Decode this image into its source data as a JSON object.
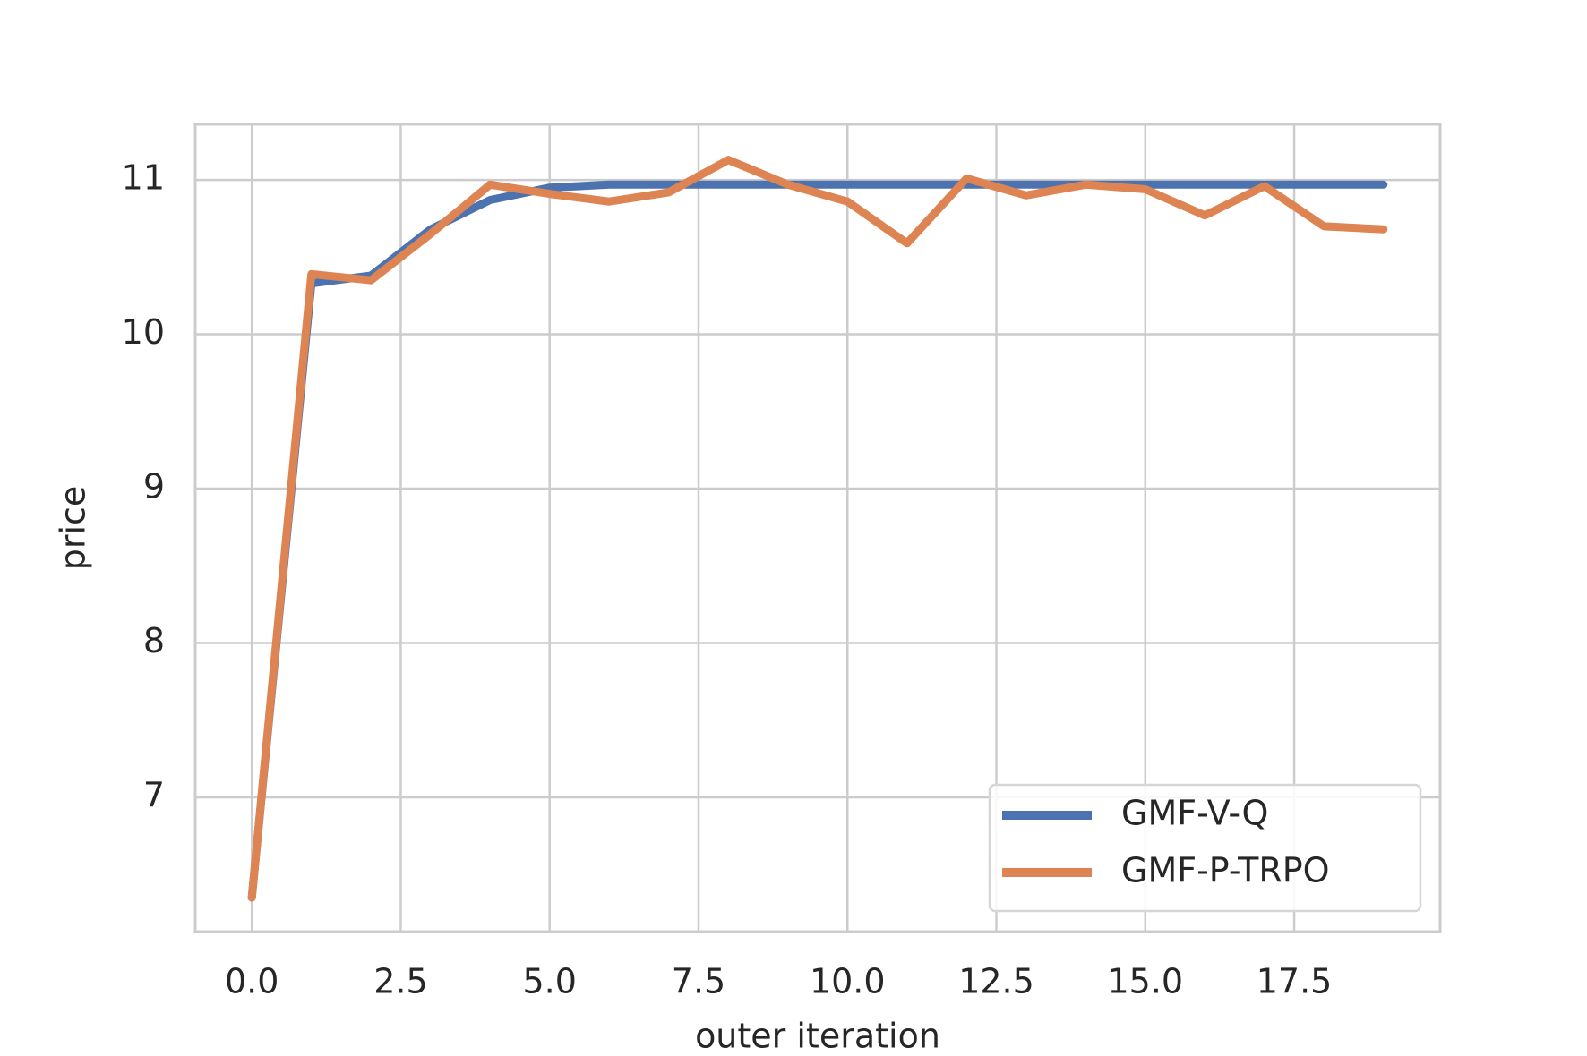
{
  "chart_data": {
    "type": "line",
    "x_label": "outer iteration",
    "y_label": "price",
    "x": [
      0,
      1,
      2,
      3,
      4,
      5,
      6,
      7,
      8,
      9,
      10,
      11,
      12,
      13,
      14,
      15,
      16,
      17,
      18,
      19
    ],
    "series": [
      {
        "name": "GMF-V-Q",
        "color": "#4c72b0",
        "values": [
          6.35,
          10.33,
          10.38,
          10.68,
          10.87,
          10.95,
          10.97,
          10.97,
          10.97,
          10.97,
          10.97,
          10.97,
          10.97,
          10.97,
          10.97,
          10.97,
          10.97,
          10.97,
          10.97,
          10.97
        ]
      },
      {
        "name": "GMF-P-TRPO",
        "color": "#dd8452",
        "values": [
          6.35,
          10.39,
          10.35,
          10.65,
          10.97,
          10.91,
          10.86,
          10.92,
          11.13,
          10.97,
          10.86,
          10.59,
          11.01,
          10.9,
          10.97,
          10.94,
          10.77,
          10.96,
          10.7,
          10.68
        ]
      }
    ],
    "xlim": [
      -0.95,
      19.95
    ],
    "xticks": [
      {
        "value": 0,
        "label": "0.0"
      },
      {
        "value": 2.5,
        "label": "2.5"
      },
      {
        "value": 5,
        "label": "5.0"
      },
      {
        "value": 7.5,
        "label": "7.5"
      },
      {
        "value": 10,
        "label": "10.0"
      },
      {
        "value": 12.5,
        "label": "12.5"
      },
      {
        "value": 15,
        "label": "15.0"
      },
      {
        "value": 17.5,
        "label": "17.5"
      }
    ],
    "ylim": [
      6.13,
      11.36
    ],
    "yticks": [
      7,
      8,
      9,
      10,
      11
    ],
    "grid": true,
    "legend_position": "lower right"
  }
}
